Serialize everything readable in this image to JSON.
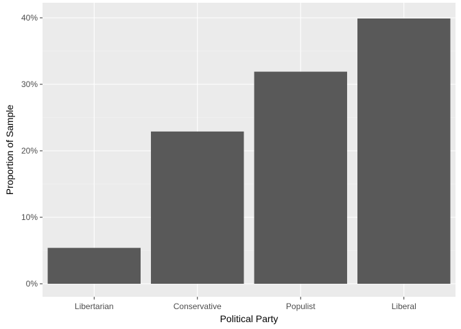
{
  "chart_data": {
    "type": "bar",
    "title": "",
    "xlabel": "Political Party",
    "ylabel": "Proportion of Sample",
    "categories": [
      "Libertarian",
      "Conservative",
      "Populist",
      "Liberal"
    ],
    "values": [
      0.054,
      0.229,
      0.319,
      0.399
    ],
    "ylim": [
      0,
      0.42
    ],
    "y_ticks": [
      0,
      0.1,
      0.2,
      0.3,
      0.4
    ],
    "y_tick_labels": [
      "0%",
      "10%",
      "20%",
      "30%",
      "40%"
    ],
    "grid": true,
    "legend": "none",
    "colors": {
      "panel": "#EBEBEB",
      "grid_major": "#FFFFFF",
      "grid_minor": "#F5F5F5",
      "bar": "#595959",
      "tick": "#333333"
    }
  }
}
